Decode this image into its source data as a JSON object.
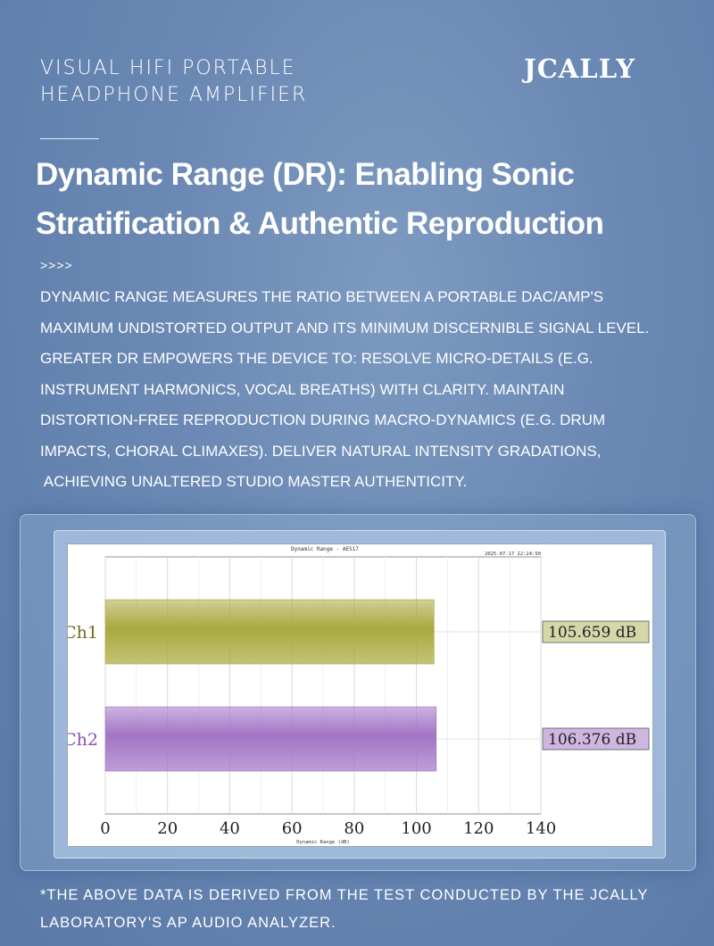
{
  "header": {
    "product_line1": "VISUAL HIFI PORTABLE",
    "product_line2": "HEADPHONE AMPLIFIER",
    "brand": "JCALLY"
  },
  "headline": {
    "line1": "Dynamic Range (DR): Enabling Sonic",
    "line2": "Stratification & Authentic Reproduction"
  },
  "arrows": ">>>>",
  "body": {
    "lines": [
      "DYNAMIC RANGE MEASURES THE RATIO BETWEEN A PORTABLE DAC/AMP'S",
      "MAXIMUM UNDISTORTED OUTPUT AND ITS MINIMUM DISCERNIBLE SIGNAL LEVEL.",
      "GREATER DR EMPOWERS THE DEVICE TO: RESOLVE MICRO-DETAILS (E.G.",
      "INSTRUMENT HARMONICS, VOCAL BREATHS) WITH CLARITY. MAINTAIN",
      "DISTORTION-FREE REPRODUCTION DURING MACRO-DYNAMICS (E.G. DRUM",
      "IMPACTS, CHORAL CLIMAXES). DELIVER NATURAL INTENSITY GRADATIONS,",
      " ACHIEVING UNALTERED STUDIO MASTER AUTHENTICITY."
    ]
  },
  "chart_data": {
    "type": "bar",
    "orientation": "horizontal",
    "title": "Dynamic Range - AES17",
    "timestamp": "2025-07-17 22:24:50",
    "xlabel": "Dynamic Range (dB)",
    "xlim": [
      0,
      140
    ],
    "xticks": [
      0,
      20,
      40,
      60,
      80,
      100,
      120,
      140
    ],
    "grid": true,
    "categories": [
      "Ch1",
      "Ch2"
    ],
    "values": [
      105.659,
      106.376
    ],
    "value_labels": [
      "105.659 dB",
      "106.376 dB"
    ],
    "colors": [
      "#a9a93e",
      "#a374c6"
    ],
    "label_fills": [
      "#d6d7a8",
      "#cfb6e0"
    ]
  },
  "footnote": {
    "line1": "*THE ABOVE DATA IS DERIVED FROM THE TEST CONDUCTED BY THE JCALLY",
    "line2": "LABORATORY'S AP AUDIO ANALYZER."
  }
}
